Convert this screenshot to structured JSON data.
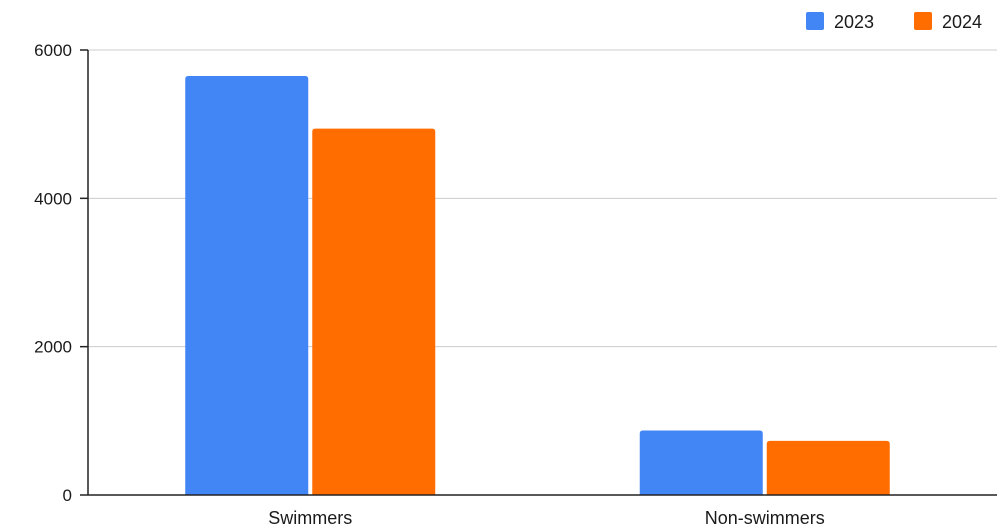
{
  "chart_data": {
    "type": "bar",
    "categories": [
      "Swimmers",
      "Non-swimmers"
    ],
    "series": [
      {
        "name": "2023",
        "values": [
          5650,
          870
        ],
        "color": "#4285f4"
      },
      {
        "name": "2024",
        "values": [
          4940,
          730
        ],
        "color": "#ff6d01"
      }
    ],
    "y_ticks": [
      "0",
      "2000",
      "4000",
      "6000"
    ],
    "ylim": [
      0,
      6000
    ],
    "grid": true,
    "legend_position": "top-right"
  }
}
